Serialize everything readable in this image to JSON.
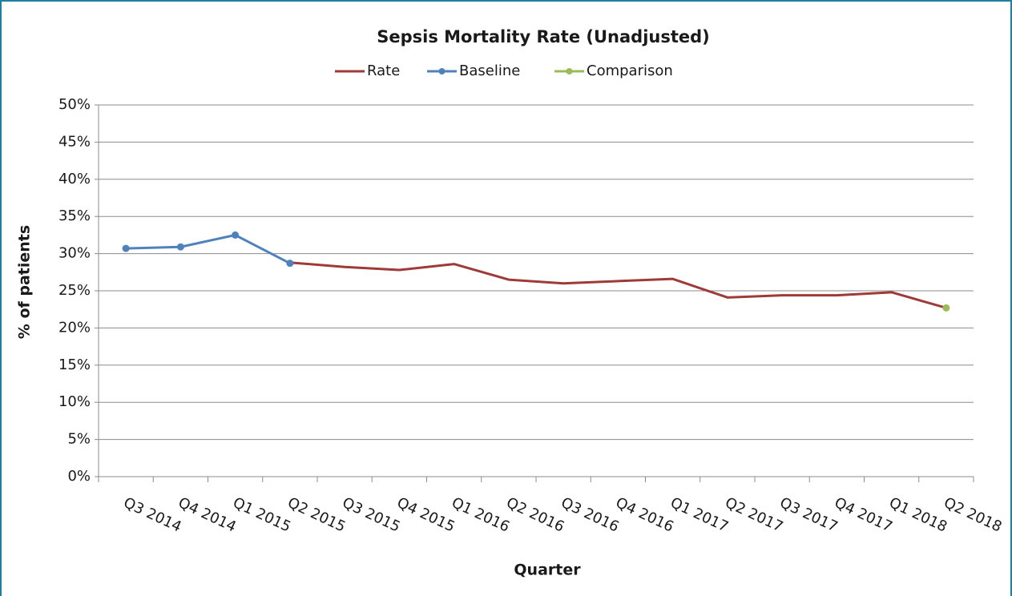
{
  "chart_data": {
    "type": "line",
    "title": "Sepsis Mortality Rate (Unadjusted)",
    "x_label": "Quarter",
    "y_label": "% of patients",
    "categories": [
      "Q3 2014",
      "Q4 2014",
      "Q1 2015",
      "Q2 2015",
      "Q3 2015",
      "Q4 2015",
      "Q1 2016",
      "Q2 2016",
      "Q3 2016",
      "Q4 2016",
      "Q1 2017",
      "Q2 2017",
      "Q3 2017",
      "Q4 2017",
      "Q1 2018",
      "Q2 2018"
    ],
    "series": [
      {
        "name": "Rate",
        "color": "#9e3a38",
        "marker": false,
        "values": [
          null,
          null,
          null,
          28.8,
          28.2,
          27.8,
          28.6,
          26.5,
          26.0,
          26.3,
          26.6,
          24.1,
          24.4,
          24.4,
          24.8,
          22.7
        ]
      },
      {
        "name": "Baseline",
        "color": "#4f81bd",
        "marker": true,
        "values": [
          30.7,
          30.9,
          32.5,
          28.7,
          null,
          null,
          null,
          null,
          null,
          null,
          null,
          null,
          null,
          null,
          null,
          null
        ]
      },
      {
        "name": "Comparison",
        "color": "#9bbb59",
        "marker": true,
        "values": [
          null,
          null,
          null,
          null,
          null,
          null,
          null,
          null,
          null,
          null,
          null,
          null,
          null,
          null,
          null,
          22.7
        ]
      }
    ],
    "ylim": [
      0,
      50
    ],
    "yticks": [
      {
        "value": 0,
        "label": "0%"
      },
      {
        "value": 5,
        "label": "5%"
      },
      {
        "value": 10,
        "label": "10%"
      },
      {
        "value": 15,
        "label": "15%"
      },
      {
        "value": 20,
        "label": "20%"
      },
      {
        "value": 25,
        "label": "25%"
      },
      {
        "value": 30,
        "label": "30%"
      },
      {
        "value": 35,
        "label": "35%"
      },
      {
        "value": 40,
        "label": "40%"
      },
      {
        "value": 45,
        "label": "45%"
      },
      {
        "value": 50,
        "label": "50%"
      }
    ],
    "grid": true,
    "legend": "top"
  }
}
